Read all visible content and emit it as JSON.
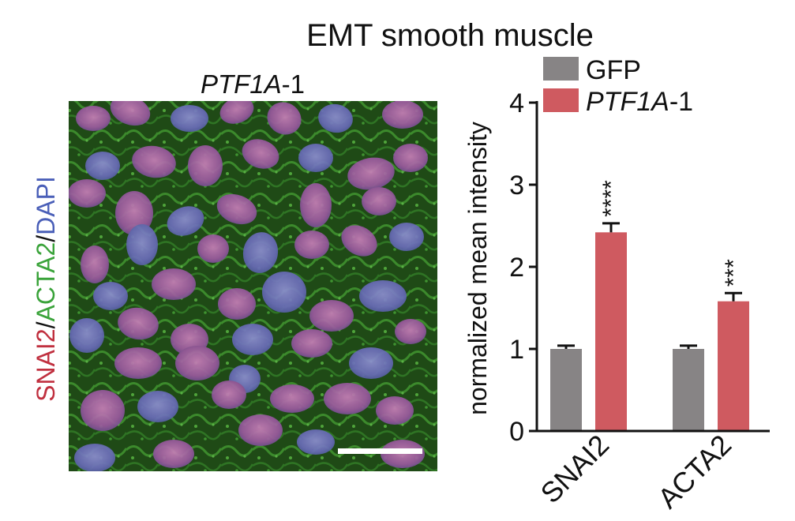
{
  "figure": {
    "title": "EMT smooth muscle",
    "panel_title": {
      "italic": "PTF1A",
      "rest": "-1"
    },
    "stain_label": [
      {
        "text": "SNAI2",
        "color": "#c0303f"
      },
      {
        "text": "/",
        "color": "#111111"
      },
      {
        "text": "ACTA2",
        "color": "#3aa33a"
      },
      {
        "text": "/",
        "color": "#111111"
      },
      {
        "text": "DAPI",
        "color": "#4a5fb8"
      }
    ]
  },
  "colors": {
    "gfp": "#878485",
    "ptf1a": "#cf5a60",
    "micrograph_bg": "#16300f",
    "scale_bar": "#ffffff"
  },
  "chart_data": {
    "type": "bar",
    "title": "EMT smooth muscle",
    "xlabel": "",
    "ylabel": "normalized mean intensity",
    "ylim": [
      0,
      4
    ],
    "yticks": [
      0,
      1,
      2,
      3,
      4
    ],
    "categories": [
      "SNAI2",
      "ACTA2"
    ],
    "series": [
      {
        "name": "GFP",
        "name_italic": "",
        "name_rest": "GFP",
        "color": "#878485",
        "values": [
          1.0,
          1.0
        ],
        "errors": [
          0.04,
          0.04
        ],
        "significance": [
          "",
          ""
        ]
      },
      {
        "name": "PTF1A-1",
        "name_italic": "PTF1A",
        "name_rest": "-1",
        "color": "#cf5a60",
        "values": [
          2.42,
          1.58
        ],
        "errors": [
          0.11,
          0.1
        ],
        "significance": [
          "****",
          "***"
        ]
      }
    ],
    "legend_position": "top"
  }
}
